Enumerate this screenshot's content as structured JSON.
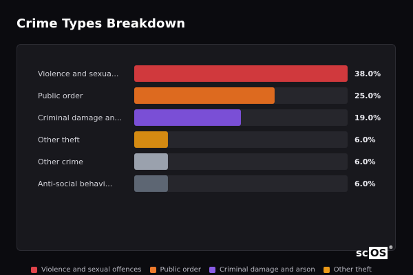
{
  "title": "Crime Types Breakdown",
  "logo": {
    "main": "sc",
    "boxed": "OS",
    "mark": "®"
  },
  "chart_data": {
    "type": "bar",
    "orientation": "horizontal",
    "unit": "%",
    "xlim": [
      0,
      38
    ],
    "grid": false,
    "legend_position": "bottom",
    "categories": [
      "Violence and sexual offences",
      "Public order",
      "Criminal damage and arson",
      "Other theft",
      "Other crime",
      "Anti-social behaviour"
    ],
    "display_categories": [
      "Violence and sexua...",
      "Public order",
      "Criminal damage an...",
      "Other theft",
      "Other crime",
      "Anti-social behavi..."
    ],
    "values": [
      38.0,
      25.0,
      19.0,
      6.0,
      6.0,
      6.0
    ],
    "value_labels": [
      "38.0%",
      "25.0%",
      "19.0%",
      "6.0%",
      "6.0%",
      "6.0%"
    ],
    "colors": [
      "#d0393d",
      "#dd6a1f",
      "#7a4fd6",
      "#d48a12",
      "#9aa1ad",
      "#5d6673"
    ],
    "track_color": "#26262c"
  },
  "legend": [
    {
      "label": "Violence and sexual offences",
      "color": "#e0434a"
    },
    {
      "label": "Public order",
      "color": "#ee7a2c"
    },
    {
      "label": "Criminal damage and arson",
      "color": "#8a5ce6"
    },
    {
      "label": "Other theft",
      "color": "#eb9a18"
    }
  ]
}
